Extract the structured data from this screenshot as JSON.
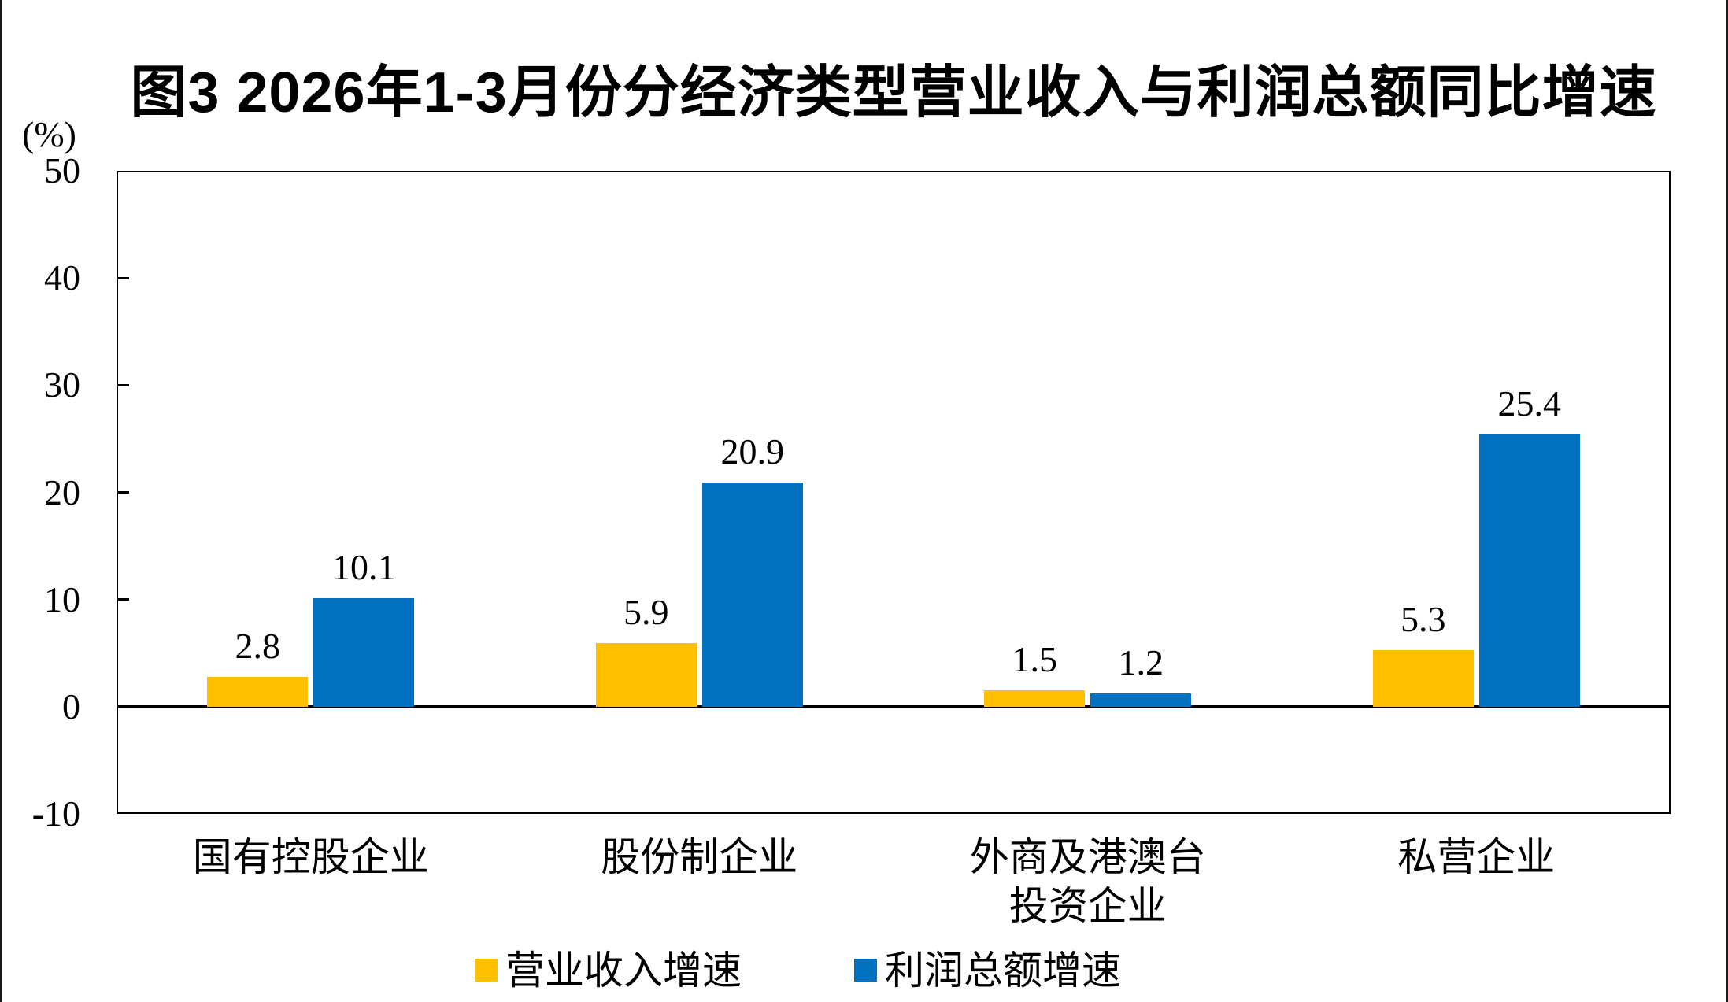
{
  "title": "图3 2026年1-3月份分经济类型营业收入与利润总额同比增速",
  "unit_label": "(%)",
  "chart_data": {
    "type": "bar",
    "categories": [
      [
        "国有控股企业"
      ],
      [
        "股份制企业"
      ],
      [
        "外商及港澳台",
        "投资企业"
      ],
      [
        "私营企业"
      ]
    ],
    "series": [
      {
        "name": "营业收入增速",
        "color": "#FFC000",
        "values": [
          2.8,
          5.9,
          1.5,
          5.3
        ]
      },
      {
        "name": "利润总额增速",
        "color": "#0070C0",
        "values": [
          10.1,
          20.9,
          1.2,
          25.4
        ]
      }
    ],
    "ylabel": "(%)",
    "ylim": [
      -10,
      50
    ],
    "yticks": [
      50,
      40,
      30,
      20,
      10,
      0,
      -10
    ],
    "grid": false,
    "legend_position": "bottom",
    "value_labels_shown": true
  }
}
